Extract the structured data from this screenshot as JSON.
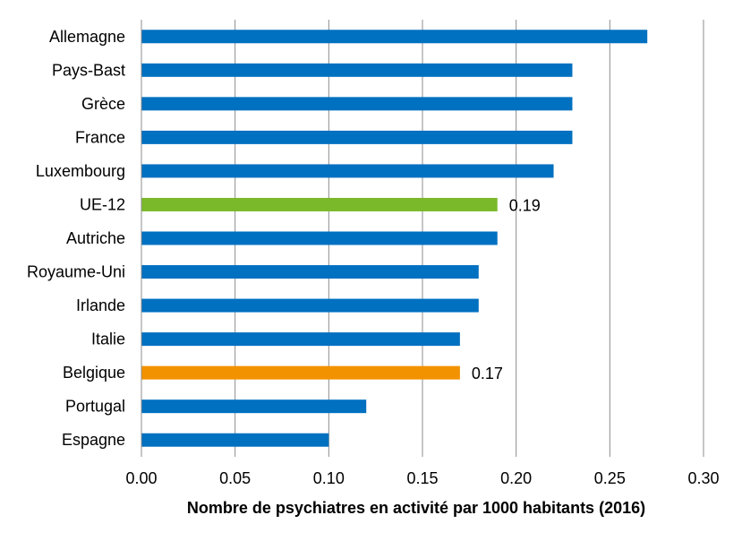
{
  "chart_data": {
    "type": "bar",
    "orientation": "horizontal",
    "categories": [
      "Allemagne",
      "Pays-Bast",
      "Grèce",
      "France",
      "Luxembourg",
      "UE-12",
      "Autriche",
      "Royaume-Uni",
      "Irlande",
      "Italie",
      "Belgique",
      "Portugal",
      "Espagne"
    ],
    "values": [
      0.27,
      0.23,
      0.23,
      0.23,
      0.22,
      0.19,
      0.19,
      0.18,
      0.18,
      0.17,
      0.17,
      0.12,
      0.1
    ],
    "bar_colors": [
      "#0070c0",
      "#0070c0",
      "#0070c0",
      "#0070c0",
      "#0070c0",
      "#7ab929",
      "#0070c0",
      "#0070c0",
      "#0070c0",
      "#0070c0",
      "#f39200",
      "#0070c0",
      "#0070c0"
    ],
    "data_labels": [
      "",
      "",
      "",
      "",
      "",
      "0.19",
      "",
      "",
      "",
      "",
      "0.17",
      "",
      ""
    ],
    "xlim": [
      0,
      0.3
    ],
    "xticks": [
      "0.00",
      "0.05",
      "0.10",
      "0.15",
      "0.20",
      "0.25",
      "0.30"
    ],
    "xlabel": "Nombre de psychiatres en activité par 1000 habitants (2016)",
    "ylabel": "",
    "title": "",
    "grid": "vertical",
    "legend": "none"
  }
}
